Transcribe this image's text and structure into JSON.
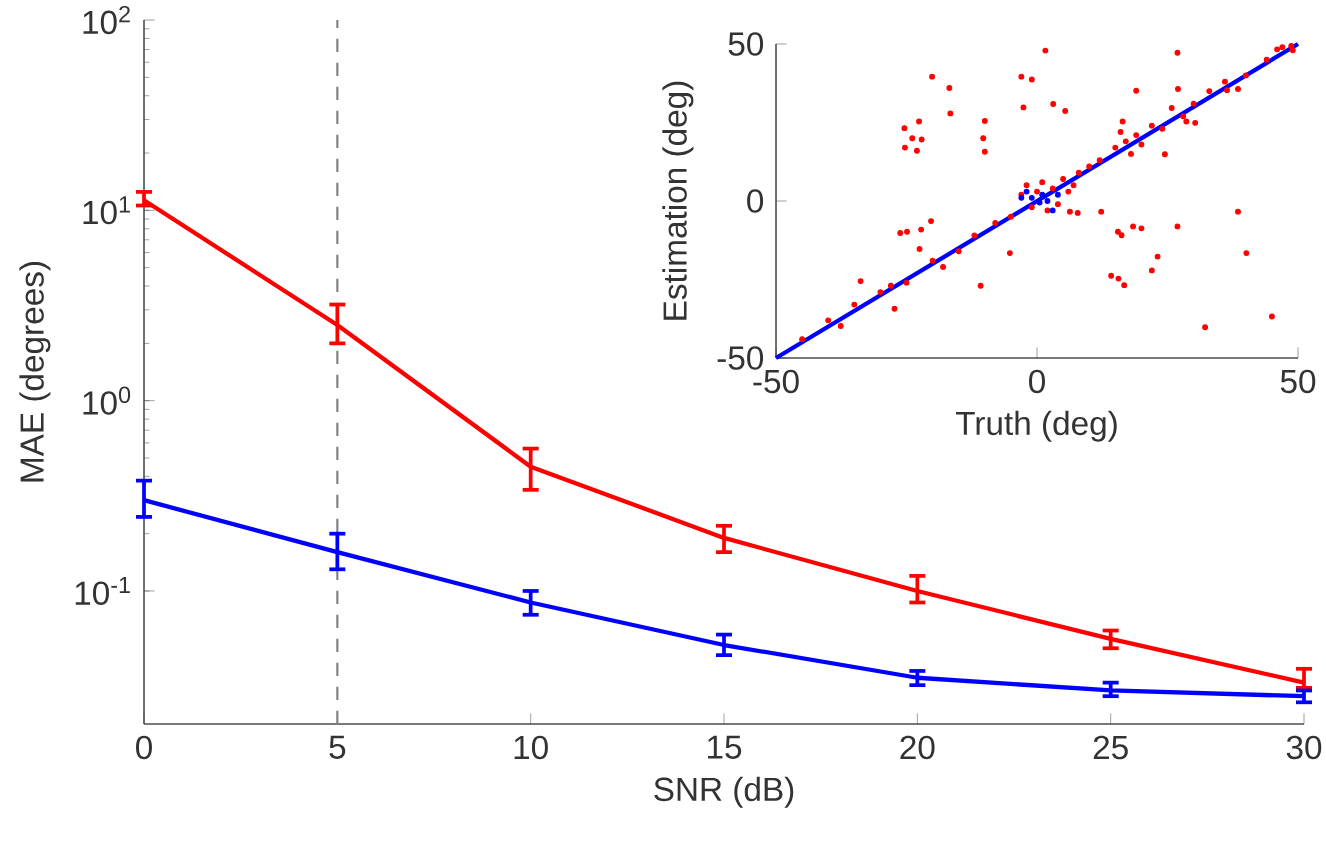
{
  "chart_data": [
    {
      "type": "line",
      "xlabel": "SNR (dB)",
      "ylabel": "MAE (degrees)",
      "log": "y",
      "x": [
        0,
        5,
        10,
        15,
        20,
        25,
        30
      ],
      "xlim": [
        0,
        30
      ],
      "xticks": [
        0,
        5,
        10,
        15,
        20,
        25,
        30
      ],
      "ylim": [
        0.02,
        100
      ],
      "yticks": [
        {
          "value": 0.1,
          "label": "10$^{-1}$"
        },
        {
          "value": 1,
          "label": "10$^{0}$"
        },
        {
          "value": 10,
          "label": "10$^{1}$"
        },
        {
          "value": 100,
          "label": "10$^{2}$"
        }
      ],
      "grid": false,
      "marker": "none",
      "line_style": "solid",
      "ref_lines": [
        {
          "axis": "x",
          "value": 5,
          "color": "#808080",
          "line_style": "dashed"
        }
      ],
      "series": [
        {
          "color": "#ff0000",
          "values": [
            11.3,
            2.5,
            0.45,
            0.19,
            0.1,
            0.056,
            0.033
          ],
          "errors": [
            [
              10.6,
              12.5
            ],
            [
              2.0,
              3.2
            ],
            [
              0.34,
              0.56
            ],
            [
              0.16,
              0.22
            ],
            [
              0.087,
              0.12
            ],
            [
              0.05,
              0.062
            ],
            [
              0.031,
              0.039
            ]
          ]
        },
        {
          "color": "#0000ff",
          "values": [
            0.3,
            0.16,
            0.087,
            0.052,
            0.035,
            0.03,
            0.028
          ],
          "errors": [
            [
              0.245,
              0.38
            ],
            [
              0.13,
              0.2
            ],
            [
              0.075,
              0.1
            ],
            [
              0.046,
              0.059
            ],
            [
              0.032,
              0.038
            ],
            [
              0.028,
              0.033
            ],
            [
              0.026,
              0.03
            ]
          ]
        }
      ]
    },
    {
      "type": "scatter",
      "xlabel": "Truth (deg)",
      "ylabel": "Estimation (deg)",
      "xlim": [
        -50,
        50
      ],
      "xticks": [
        -50,
        0,
        50
      ],
      "ylim": [
        -50,
        50
      ],
      "yticks": [
        -50,
        0,
        50
      ],
      "grid": false,
      "marker": "circle",
      "series": [
        {
          "color": "#ff0000",
          "x": [
            -20.1,
            -16.8,
            -16.6,
            -25.4,
            -22.6,
            -23.9,
            -22.1,
            -25.3,
            -23,
            -10,
            -10.3,
            -10,
            1.6,
            -3,
            -1,
            -2.6,
            3.1,
            5.4,
            26.9,
            19,
            27,
            25.8,
            16.4,
            24.5,
            28.6,
            30.3,
            36.4,
            38.5,
            46,
            48.7,
            -20.3,
            -24.9,
            -26.2,
            -22.2,
            -22.5,
            -5.2,
            -10.8,
            -27.3,
            -33.8,
            -37.6,
            6.3,
            7.8,
            12.3,
            15.5,
            16.2,
            18.4,
            20,
            26.9,
            38.5,
            40.1,
            23.1,
            22,
            14.2,
            15.6,
            16.7,
            32.2,
            45,
            -45,
            -40,
            -35,
            -30,
            -28,
            -25,
            -20,
            -18,
            -15,
            -12,
            -8,
            -5,
            -3,
            -2,
            -1,
            0,
            1,
            2,
            3,
            4,
            5,
            6,
            7,
            8,
            10,
            12,
            15,
            16,
            17,
            18,
            19,
            20,
            22,
            24,
            28,
            30,
            33,
            36,
            40,
            44,
            47,
            49
          ],
          "values": [
            39.6,
            36,
            27.9,
            23.2,
            25.3,
            20,
            19.6,
            17,
            16,
            25.5,
            20,
            15.7,
            47.9,
            39.6,
            38.7,
            29.8,
            30.9,
            28.7,
            47.2,
            35.1,
            35.7,
            29.6,
            25.3,
            14.9,
            25.3,
            24.9,
            35.3,
            35.7,
            48.3,
            49.4,
            -6.4,
            -9.8,
            -10.2,
            -9.1,
            -15.3,
            -16.6,
            -27,
            -34.3,
            -25.5,
            -39.8,
            -3.4,
            -3.8,
            -3.4,
            -9.8,
            -10.9,
            -8.1,
            -8.7,
            -8.1,
            -3.4,
            -16.6,
            -17.7,
            -22.1,
            -23.8,
            -24.7,
            -26.8,
            -40.2,
            -36.8,
            -44,
            -38,
            -33,
            -29,
            -27,
            -26,
            -19,
            -21,
            -16,
            -11,
            -7,
            -5,
            2,
            5,
            -2,
            3,
            6,
            -3,
            4,
            -1,
            7,
            3,
            5,
            9,
            11,
            13,
            17,
            22,
            19,
            15,
            21,
            18,
            24,
            23,
            27,
            31,
            35,
            38,
            40,
            45,
            49,
            48
          ]
        },
        {
          "type": "line",
          "color": "#0000ff",
          "marker": "none",
          "x": [
            -50,
            50
          ],
          "values": [
            -50,
            50
          ]
        },
        {
          "color": "#0000ff",
          "x": [
            -3,
            -2,
            -1,
            0.5,
            1,
            2,
            3,
            4
          ],
          "values": [
            1,
            3,
            1,
            -0.5,
            2,
            0,
            -3,
            2
          ]
        }
      ]
    }
  ]
}
